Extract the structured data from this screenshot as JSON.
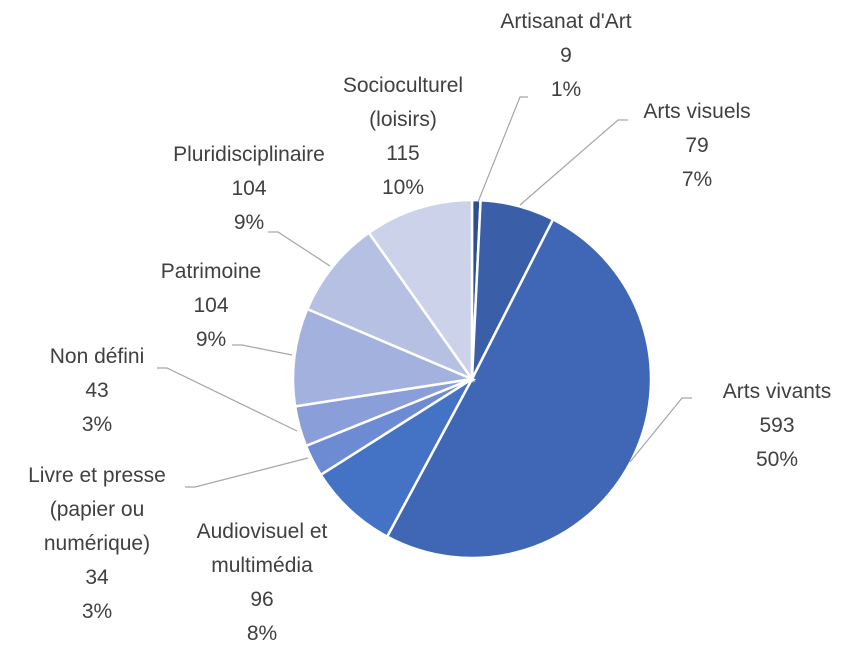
{
  "chart_data": {
    "type": "pie",
    "categories": [
      "Artisanat d'Art",
      "Arts visuels",
      "Arts vivants",
      "Audiovisuel et multimédia",
      "Livre et presse (papier ou numérique)",
      "Non défini",
      "Patrimoine",
      "Pluridisciplinaire",
      "Socioculturel (loisirs)"
    ],
    "values": [
      9,
      79,
      593,
      96,
      34,
      43,
      104,
      104,
      115
    ],
    "percent_labels": [
      "1%",
      "7%",
      "50%",
      "8%",
      "3%",
      "3%",
      "9%",
      "9%",
      "10%"
    ],
    "colors": [
      "#2e4f8f",
      "#3a5ea8",
      "#3f67b6",
      "#4472c4",
      "#6d8bd3",
      "#8a9fd9",
      "#a3b1de",
      "#b6c0e3",
      "#ccd2ea"
    ]
  }
}
